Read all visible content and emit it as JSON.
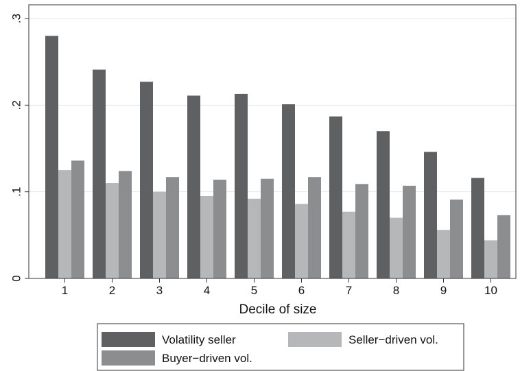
{
  "chart_data": {
    "type": "bar",
    "title": "",
    "xlabel": "Decile of size",
    "ylabel": "",
    "categories": [
      "1",
      "2",
      "3",
      "4",
      "5",
      "6",
      "7",
      "8",
      "9",
      "10"
    ],
    "ylim": [
      0,
      0.3
    ],
    "yticks": [
      0,
      0.1,
      0.2,
      0.3
    ],
    "ytick_labels": [
      "0",
      ".1",
      ".2",
      ".3"
    ],
    "grid": true,
    "legend_position": "bottom",
    "series": [
      {
        "name": "Volatility seller",
        "color": "#5f6062",
        "values": [
          0.28,
          0.241,
          0.227,
          0.211,
          0.213,
          0.201,
          0.187,
          0.17,
          0.146,
          0.116
        ]
      },
      {
        "name": "Seller−driven vol.",
        "color": "#b6b7b9",
        "values": [
          0.125,
          0.11,
          0.1,
          0.095,
          0.092,
          0.086,
          0.077,
          0.07,
          0.056,
          0.044
        ]
      },
      {
        "name": "Buyer−driven vol.",
        "color": "#8c8d8f",
        "values": [
          0.136,
          0.124,
          0.117,
          0.114,
          0.115,
          0.117,
          0.109,
          0.107,
          0.091,
          0.073
        ]
      }
    ]
  }
}
